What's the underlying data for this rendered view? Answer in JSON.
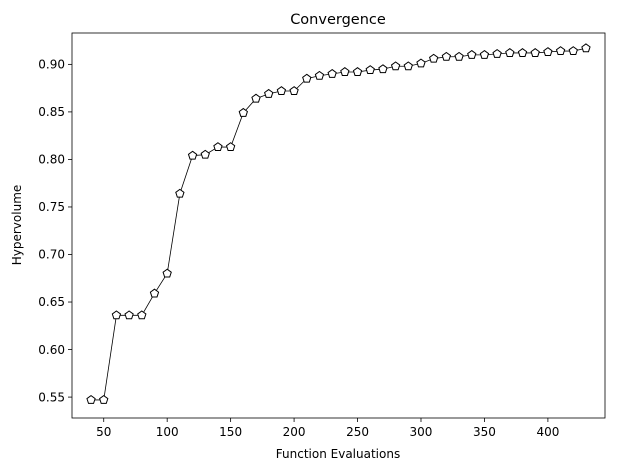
{
  "chart_data": {
    "type": "line",
    "title": "Convergence",
    "xlabel": "Function Evaluations",
    "ylabel": "Hypervolume",
    "xlim": [
      25,
      445
    ],
    "ylim": [
      0.528,
      0.933
    ],
    "xticks": [
      50,
      100,
      150,
      200,
      250,
      300,
      350,
      400
    ],
    "yticks": [
      0.55,
      0.6,
      0.65,
      0.7,
      0.75,
      0.8,
      0.85,
      0.9
    ],
    "ytick_labels": [
      "0.55",
      "0.60",
      "0.65",
      "0.70",
      "0.75",
      "0.80",
      "0.85",
      "0.90"
    ],
    "grid": false,
    "legend": "none",
    "marker": "pentagon",
    "line_color": "#000000",
    "marker_face": "#ffffff",
    "series": [
      {
        "x": [
          40,
          50,
          60,
          70,
          80,
          90,
          100,
          110,
          120,
          130,
          140,
          150,
          160,
          170,
          180,
          190,
          200,
          210,
          220,
          230,
          240,
          250,
          260,
          270,
          280,
          290,
          300,
          310,
          320,
          330,
          340,
          350,
          360,
          370,
          380,
          390,
          400,
          410,
          420,
          430
        ],
        "y": [
          0.547,
          0.547,
          0.636,
          0.636,
          0.636,
          0.659,
          0.68,
          0.764,
          0.804,
          0.805,
          0.813,
          0.813,
          0.849,
          0.864,
          0.869,
          0.872,
          0.872,
          0.885,
          0.888,
          0.89,
          0.892,
          0.892,
          0.894,
          0.895,
          0.898,
          0.898,
          0.901,
          0.906,
          0.908,
          0.908,
          0.91,
          0.91,
          0.911,
          0.912,
          0.912,
          0.912,
          0.913,
          0.914,
          0.914,
          0.917
        ]
      }
    ]
  }
}
